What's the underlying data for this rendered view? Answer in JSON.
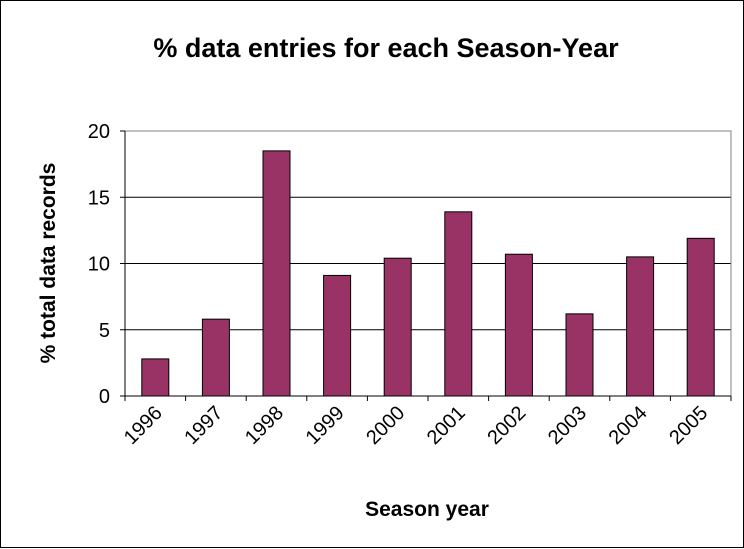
{
  "chart_data": {
    "type": "bar",
    "title": "% data entries for each Season-Year",
    "xlabel": "Season year",
    "ylabel": "% total data records",
    "categories": [
      "1996",
      "1997",
      "1998",
      "1999",
      "2000",
      "2001",
      "2002",
      "2003",
      "2004",
      "2005"
    ],
    "values": [
      2.8,
      5.8,
      18.5,
      9.1,
      10.4,
      13.9,
      10.7,
      6.2,
      10.5,
      11.9
    ],
    "ylim": [
      0,
      20
    ],
    "yticks": [
      "0",
      "5",
      "10",
      "15",
      "20"
    ],
    "grid": true,
    "legend": "none",
    "colors": {
      "bar_fill": "#993366",
      "bar_stroke": "#000000",
      "grid": "#000000",
      "background": "#ffffff"
    }
  }
}
